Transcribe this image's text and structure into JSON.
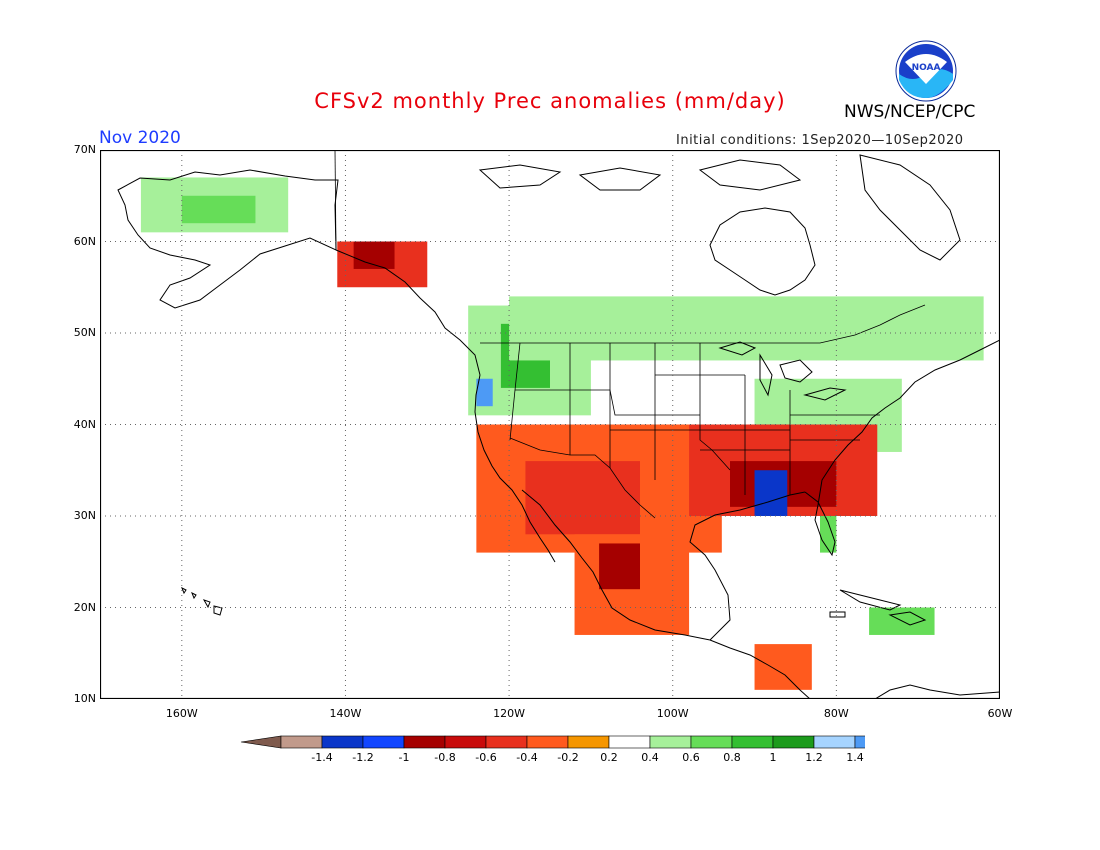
{
  "header": {
    "title": "CFSv2 monthly Prec anomalies (mm/day)",
    "agency": "NWS/NCEP/CPC",
    "valid_month": "Nov 2020",
    "initial_conditions": "Initial conditions: 1Sep2020—10Sep2020",
    "logo_text": "NOAA"
  },
  "map": {
    "extent": {
      "lon": [
        -170,
        -60
      ],
      "lat": [
        10,
        70
      ]
    },
    "lat_ticks": [
      {
        "value": 70,
        "label": "70N"
      },
      {
        "value": 60,
        "label": "60N"
      },
      {
        "value": 50,
        "label": "50N"
      },
      {
        "value": 40,
        "label": "40N"
      },
      {
        "value": 30,
        "label": "30N"
      },
      {
        "value": 20,
        "label": "20N"
      },
      {
        "value": 10,
        "label": "10N"
      }
    ],
    "lon_ticks": [
      {
        "value": -160,
        "label": "160W"
      },
      {
        "value": -140,
        "label": "140W"
      },
      {
        "value": -120,
        "label": "120W"
      },
      {
        "value": -100,
        "label": "100W"
      },
      {
        "value": -80,
        "label": "80W"
      },
      {
        "value": -60,
        "label": "60W"
      }
    ],
    "gridlines": "dotted",
    "anomaly_regions": [
      {
        "name": "alaska-wet",
        "category": 0.2,
        "lon": [
          -165,
          -147
        ],
        "lat": [
          61,
          67
        ]
      },
      {
        "name": "alaska-wet-core",
        "category": 0.4,
        "lon": [
          -160,
          -151
        ],
        "lat": [
          62,
          65
        ]
      },
      {
        "name": "se-alaska-dry",
        "category": -0.6,
        "lon": [
          -141,
          -130
        ],
        "lat": [
          55,
          60
        ]
      },
      {
        "name": "se-alaska-dry-core",
        "category": -0.8,
        "lon": [
          -139,
          -134
        ],
        "lat": [
          57,
          60
        ]
      },
      {
        "name": "nw-wet",
        "category": 0.2,
        "lon": [
          -125,
          -110
        ],
        "lat": [
          41,
          53
        ]
      },
      {
        "name": "nw-wet-core",
        "category": 0.6,
        "lon": [
          -121,
          -115
        ],
        "lat": [
          44,
          51
        ]
      },
      {
        "name": "oregon-coast-wet",
        "category": 1.2,
        "lon": [
          -124,
          -122
        ],
        "lat": [
          42,
          45
        ]
      },
      {
        "name": "canada-wet",
        "category": 0.2,
        "lon": [
          -120,
          -62
        ],
        "lat": [
          47,
          54
        ]
      },
      {
        "name": "great-lakes-wet",
        "category": 0.2,
        "lon": [
          -90,
          -72
        ],
        "lat": [
          37,
          45
        ]
      },
      {
        "name": "southwest-dry",
        "category": -0.4,
        "lon": [
          -124,
          -94
        ],
        "lat": [
          26,
          40
        ]
      },
      {
        "name": "southwest-dry-core",
        "category": -0.6,
        "lon": [
          -118,
          -104
        ],
        "lat": [
          28,
          36
        ]
      },
      {
        "name": "mexico-dry",
        "category": -0.4,
        "lon": [
          -112,
          -98
        ],
        "lat": [
          17,
          28
        ]
      },
      {
        "name": "mexico-dry-core",
        "category": -0.8,
        "lon": [
          -109,
          -104
        ],
        "lat": [
          22,
          27
        ]
      },
      {
        "name": "southeast-dry",
        "category": -0.6,
        "lon": [
          -98,
          -75
        ],
        "lat": [
          30,
          40
        ]
      },
      {
        "name": "southeast-dry-core",
        "category": -0.8,
        "lon": [
          -93,
          -80
        ],
        "lat": [
          31,
          36
        ]
      },
      {
        "name": "deep-south-very-dry",
        "category": -1.2,
        "lon": [
          -90,
          -86
        ],
        "lat": [
          30,
          35
        ]
      },
      {
        "name": "florida-wet",
        "category": 0.4,
        "lon": [
          -82,
          -80
        ],
        "lat": [
          26,
          30
        ]
      },
      {
        "name": "caribbean-wet",
        "category": 0.4,
        "lon": [
          -76,
          -68
        ],
        "lat": [
          17,
          20
        ]
      },
      {
        "name": "central-america-dry",
        "category": -0.4,
        "lon": [
          -90,
          -83
        ],
        "lat": [
          11,
          16
        ]
      }
    ]
  },
  "colorbar": {
    "colors": [
      "#7f5a4d",
      "#c19a8b",
      "#0a36c9",
      "#1246ff",
      "#a50000",
      "#c80b0b",
      "#e8301e",
      "#ff5a1e",
      "#f59600",
      "#ffffff",
      "#a6f09a",
      "#66dd58",
      "#34bf32",
      "#1c9b1c",
      "#a6d4ff",
      "#4d9af5",
      "#2b6cf5"
    ],
    "labels": [
      "-1.4",
      "-1.2",
      "-1",
      "-0.8",
      "-0.6",
      "-0.4",
      "-0.2",
      "0.2",
      "0.4",
      "0.6",
      "0.8",
      "1",
      "1.2",
      "1.4"
    ]
  }
}
